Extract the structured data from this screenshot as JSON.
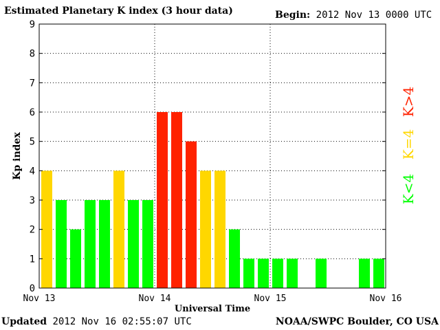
{
  "header": {
    "title": "Estimated Planetary K index (3 hour data)",
    "begin_label": "Begin:",
    "begin_value": "2012 Nov 13 0000 UTC"
  },
  "footer": {
    "updated_label": "Updated",
    "updated_value": "2012 Nov 16 02:55:07 UTC",
    "source": "NOAA/SWPC Boulder, CO USA"
  },
  "chart_data": {
    "type": "bar",
    "title": "Estimated Planetary K index (3 hour data)",
    "xlabel": "Universal Time",
    "ylabel": "Kp index",
    "ylim": [
      0,
      9
    ],
    "yticks": [
      0,
      1,
      2,
      3,
      4,
      5,
      6,
      7,
      8,
      9
    ],
    "xticks": [
      "Nov 13",
      "Nov 14",
      "Nov 15",
      "Nov 16"
    ],
    "grid": true,
    "values": [
      4,
      3,
      2,
      3,
      3,
      4,
      3,
      3,
      6,
      6,
      5,
      4,
      4,
      2,
      1,
      1,
      1,
      1,
      0,
      1,
      0,
      0,
      1,
      1
    ],
    "colors": {
      "below4": "#00ff00",
      "equal4": "#ffd700",
      "above4": "#ff2200"
    },
    "legend": [
      {
        "label": "K<4",
        "color": "#00ff00"
      },
      {
        "label": "K=4",
        "color": "#ffd700"
      },
      {
        "label": "K>4",
        "color": "#ff2200"
      }
    ]
  }
}
